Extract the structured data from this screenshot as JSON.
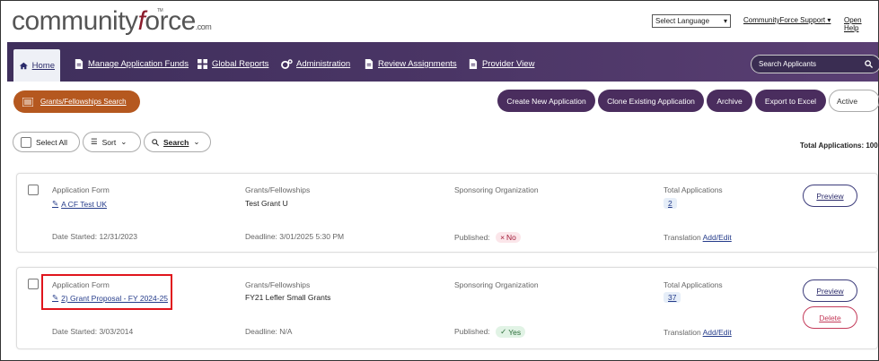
{
  "brand": {
    "logo_pre": "community",
    "logo_f": "f",
    "logo_post": "orce",
    "logo_com": ".com",
    "logo_tm": "TM"
  },
  "header": {
    "language_select": "Select Language",
    "support_link": "CommunityForce Support",
    "help_link": "Open Help"
  },
  "nav": {
    "items": [
      {
        "label": "Home",
        "icon": "home-icon"
      },
      {
        "label": "Manage Application Funds",
        "icon": "document-icon"
      },
      {
        "label": "Global Reports",
        "icon": "grid-icon"
      },
      {
        "label": "Administration",
        "icon": "gears-icon"
      },
      {
        "label": "Review Assignments",
        "icon": "document-icon"
      },
      {
        "label": "Provider View",
        "icon": "document-icon"
      }
    ],
    "search_placeholder": "Search Applicants"
  },
  "toolbar": {
    "grants_search": "Grants/Fellowships Search",
    "create_new": "Create New Application",
    "clone_existing": "Clone Existing Application",
    "archive": "Archive",
    "export_excel": "Export to Excel",
    "status_filter": "Active"
  },
  "filters": {
    "select_all": "Select All",
    "sort": "Sort",
    "search": "Search",
    "total_applications": "Total Applications: 100"
  },
  "cards": [
    {
      "form_label": "Application Form",
      "form_name": "A CF Test UK",
      "grant_label": "Grants/Fellowships",
      "grant_name": "Test Grant U",
      "org_label": "Sponsoring Organization",
      "org_name": "",
      "total_label": "Total Applications",
      "total_count": "2",
      "date_started": "Date Started: 12/31/2023",
      "deadline": "Deadline: 3/01/2025 5:30 PM",
      "published_label": "Published:",
      "published_value": "No",
      "translation_label": "Translation",
      "translation_link": "Add/Edit",
      "preview": "Preview"
    },
    {
      "form_label": "Application Form",
      "form_name": "2) Grant Proposal - FY 2024-25",
      "grant_label": "Grants/Fellowships",
      "grant_name": "FY21 Lefler Small Grants",
      "org_label": "Sponsoring Organization",
      "org_name": "",
      "total_label": "Total Applications",
      "total_count": "37",
      "date_started": "Date Started: 3/03/2014",
      "deadline": "Deadline: N/A",
      "published_label": "Published:",
      "published_value": "Yes",
      "translation_label": "Translation",
      "translation_link": "Add/Edit",
      "preview": "Preview",
      "delete": "Delete"
    }
  ]
}
